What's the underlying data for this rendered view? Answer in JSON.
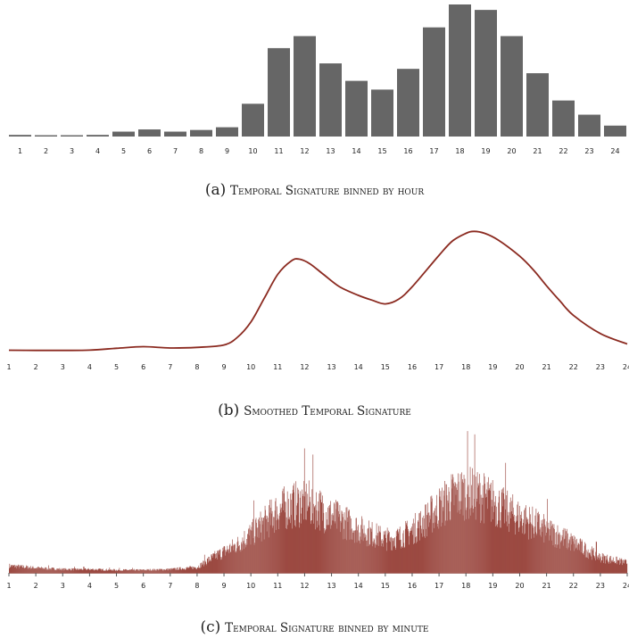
{
  "chart_data": [
    {
      "type": "bar",
      "panel": "a",
      "categories": [
        "1",
        "2",
        "3",
        "4",
        "5",
        "6",
        "7",
        "8",
        "9",
        "10",
        "11",
        "12",
        "13",
        "14",
        "15",
        "16",
        "17",
        "18",
        "19",
        "20",
        "21",
        "22",
        "23",
        "24"
      ],
      "values": [
        1.5,
        1.2,
        1.2,
        1.5,
        4.5,
        6.5,
        4.5,
        6,
        8.5,
        30,
        81,
        92,
        67,
        51,
        43,
        62,
        100,
        121,
        116,
        92,
        58,
        33,
        20,
        10
      ],
      "ylim": [
        0,
        125
      ],
      "color": "#666666",
      "caption_tag": "(a)",
      "caption": "Temporal Signature binned by hour"
    },
    {
      "type": "line",
      "panel": "b",
      "x": [
        1,
        2,
        3,
        4,
        5,
        6,
        7,
        8,
        9,
        9.5,
        10,
        10.5,
        11,
        11.5,
        11.8,
        12.2,
        12.7,
        13.3,
        14,
        14.5,
        15,
        15.5,
        16,
        17,
        17.5,
        18,
        18.3,
        18.7,
        19.2,
        20,
        20.5,
        21,
        21.5,
        22,
        23,
        24
      ],
      "y": [
        0.5,
        0.3,
        0.3,
        0.6,
        2.5,
        4.2,
        2.8,
        3.5,
        6,
        14,
        30,
        55,
        80,
        94,
        96,
        91,
        80,
        67,
        58,
        53,
        49,
        54,
        67,
        100,
        115,
        123,
        125,
        123,
        116,
        99,
        85,
        68,
        52,
        37,
        18,
        7
      ],
      "ylim": [
        0,
        130
      ],
      "color": "#8b2a20",
      "tick_labels": [
        "1",
        "2",
        "3",
        "4",
        "5",
        "6",
        "7",
        "8",
        "9",
        "10",
        "11",
        "12",
        "13",
        "14",
        "15",
        "16",
        "17",
        "18",
        "19",
        "20",
        "21",
        "22",
        "23",
        "24"
      ],
      "caption_tag": "(b)",
      "caption": "Smoothed Temporal Signature"
    },
    {
      "type": "bar",
      "panel": "c",
      "x_range": [
        1,
        24
      ],
      "bins": 1380,
      "envelope_x": [
        1,
        2,
        3,
        4,
        5,
        6,
        7,
        8,
        8.5,
        9,
        9.5,
        10,
        10.5,
        11,
        11.5,
        12,
        12.5,
        13,
        13.5,
        14,
        14.5,
        15,
        15.5,
        16,
        16.5,
        17,
        17.5,
        18,
        18.5,
        19,
        19.5,
        20,
        20.5,
        21,
        21.5,
        22,
        22.5,
        23,
        24
      ],
      "envelope_y": [
        10,
        7,
        5,
        5,
        4,
        4,
        5,
        8,
        20,
        30,
        40,
        55,
        70,
        88,
        95,
        100,
        92,
        80,
        72,
        62,
        55,
        48,
        50,
        60,
        75,
        92,
        108,
        115,
        110,
        100,
        88,
        78,
        70,
        60,
        52,
        42,
        32,
        22,
        14
      ],
      "ylim": [
        0,
        160
      ],
      "color": "#9c4a42",
      "tick_labels": [
        "1",
        "2",
        "3",
        "4",
        "5",
        "6",
        "7",
        "8",
        "9",
        "10",
        "11",
        "12",
        "13",
        "14",
        "15",
        "16",
        "17",
        "18",
        "19",
        "20",
        "21",
        "22",
        "23",
        "24"
      ],
      "caption_tag": "(c)",
      "caption": "Temporal Signature binned by minute"
    }
  ]
}
